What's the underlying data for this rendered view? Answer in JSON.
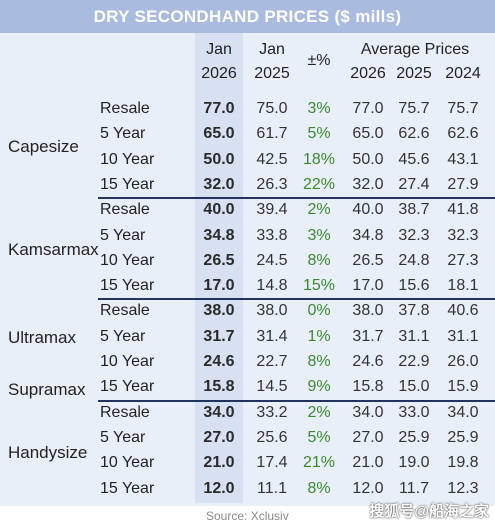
{
  "title": "DRY SECONDHAND PRICES ($ mills)",
  "header": {
    "jan26_top": "Jan",
    "jan26_bottom": "2026",
    "jan25_top": "Jan",
    "jan25_bottom": "2025",
    "pct": "±%",
    "avg": "Average Prices",
    "avg26": "2026",
    "avg25": "2025",
    "avg24": "2024"
  },
  "groups": [
    "Capesize",
    "Kamsarmax",
    "Ultramax",
    "Supramax",
    "Handysize"
  ],
  "rows": [
    {
      "label": "Resale",
      "jan26": "77.0",
      "jan25": "75.0",
      "pct": "3%",
      "a26": "77.0",
      "a25": "75.7",
      "a24": "75.7"
    },
    {
      "label": "5 Year",
      "jan26": "65.0",
      "jan25": "61.7",
      "pct": "5%",
      "a26": "65.0",
      "a25": "62.6",
      "a24": "62.6"
    },
    {
      "label": "10 Year",
      "jan26": "50.0",
      "jan25": "42.5",
      "pct": "18%",
      "a26": "50.0",
      "a25": "45.6",
      "a24": "43.1"
    },
    {
      "label": "15 Year",
      "jan26": "32.0",
      "jan25": "26.3",
      "pct": "22%",
      "a26": "32.0",
      "a25": "27.4",
      "a24": "27.9"
    },
    {
      "label": "Resale",
      "jan26": "40.0",
      "jan25": "39.4",
      "pct": "2%",
      "a26": "40.0",
      "a25": "38.7",
      "a24": "41.8"
    },
    {
      "label": "5 Year",
      "jan26": "34.8",
      "jan25": "33.8",
      "pct": "3%",
      "a26": "34.8",
      "a25": "32.3",
      "a24": "32.3"
    },
    {
      "label": "10 Year",
      "jan26": "26.5",
      "jan25": "24.5",
      "pct": "8%",
      "a26": "26.5",
      "a25": "24.8",
      "a24": "27.3"
    },
    {
      "label": "15 Year",
      "jan26": "17.0",
      "jan25": "14.8",
      "pct": "15%",
      "a26": "17.0",
      "a25": "15.6",
      "a24": "18.1"
    },
    {
      "label": "Resale",
      "jan26": "38.0",
      "jan25": "38.0",
      "pct": "0%",
      "a26": "38.0",
      "a25": "37.8",
      "a24": "40.6"
    },
    {
      "label": "5 Year",
      "jan26": "31.7",
      "jan25": "31.4",
      "pct": "1%",
      "a26": "31.7",
      "a25": "31.1",
      "a24": "31.1"
    },
    {
      "label": "10 Year",
      "jan26": "24.6",
      "jan25": "22.7",
      "pct": "8%",
      "a26": "24.6",
      "a25": "22.9",
      "a24": "26.0"
    },
    {
      "label": "15 Year",
      "jan26": "15.8",
      "jan25": "14.5",
      "pct": "9%",
      "a26": "15.8",
      "a25": "15.0",
      "a24": "15.9"
    },
    {
      "label": "Resale",
      "jan26": "34.0",
      "jan25": "33.2",
      "pct": "2%",
      "a26": "34.0",
      "a25": "33.0",
      "a24": "34.0"
    },
    {
      "label": "5 Year",
      "jan26": "27.0",
      "jan25": "25.6",
      "pct": "5%",
      "a26": "27.0",
      "a25": "25.9",
      "a24": "25.9"
    },
    {
      "label": "10 Year",
      "jan26": "21.0",
      "jan25": "17.4",
      "pct": "21%",
      "a26": "21.0",
      "a25": "19.0",
      "a24": "19.8"
    },
    {
      "label": "15 Year",
      "jan26": "12.0",
      "jan25": "11.1",
      "pct": "8%",
      "a26": "12.0",
      "a25": "11.7",
      "a24": "12.3"
    }
  ],
  "source": "Source: Xclusiv",
  "watermark": "搜狐号@船海之家"
}
